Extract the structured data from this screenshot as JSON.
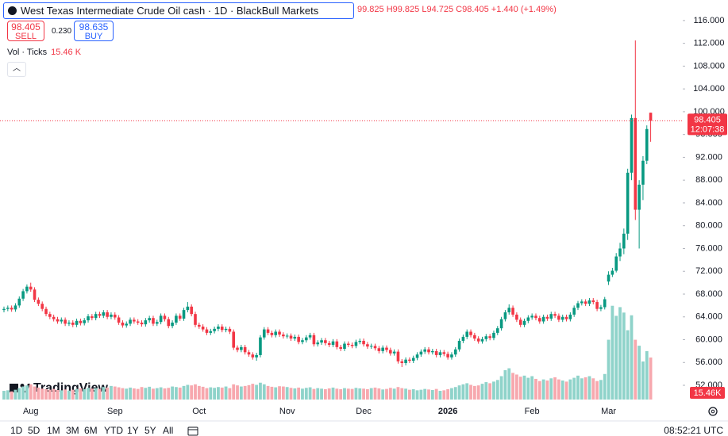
{
  "header": {
    "title": "West Texas Intermediate Crude Oil cash · 1D · BlackBull Markets",
    "readout": "99.825 H99.825 L94.725 C98.405 +1.440 (+1.49%)"
  },
  "trade_panel": {
    "sell_price": "98.405",
    "sell_label": "SELL",
    "spread": "0.230",
    "buy_price": "98.635",
    "buy_label": "BUY"
  },
  "chart_data": {
    "type": "candlestick",
    "categories": [
      null,
      null,
      null,
      null,
      null,
      null,
      null,
      "Aug",
      null,
      null,
      null,
      null,
      null,
      null,
      null,
      null,
      null,
      null,
      null,
      null,
      null,
      null,
      null,
      null,
      null,
      null,
      null,
      null,
      null,
      "Sep",
      null,
      null,
      null,
      null,
      null,
      null,
      null,
      null,
      null,
      null,
      null,
      null,
      null,
      null,
      null,
      null,
      null,
      null,
      null,
      null,
      null,
      "Oct",
      null,
      null,
      null,
      null,
      null,
      null,
      null,
      null,
      null,
      null,
      null,
      null,
      null,
      null,
      null,
      null,
      null,
      null,
      null,
      null,
      null,
      null,
      "Nov",
      null,
      null,
      null,
      null,
      null,
      null,
      null,
      null,
      null,
      null,
      null,
      null,
      null,
      null,
      null,
      null,
      null,
      null,
      null,
      "Dec",
      null,
      null,
      null,
      null,
      null,
      null,
      null,
      null,
      null,
      null,
      null,
      null,
      null,
      null,
      null,
      null,
      null,
      null,
      null,
      null,
      null,
      "2026",
      null,
      null,
      null,
      null,
      null,
      null,
      null,
      null,
      null,
      null,
      null,
      null,
      null,
      null,
      null,
      null,
      null,
      null,
      null,
      null,
      null,
      "Feb",
      null,
      null,
      null,
      null,
      null,
      null,
      null,
      null,
      null,
      null,
      null,
      null,
      null,
      null,
      null,
      null,
      null,
      null,
      null,
      "Mar",
      null,
      null,
      null,
      null,
      null,
      null,
      null,
      null,
      null,
      null,
      null
    ],
    "open": [
      65.2,
      65.4,
      65.6,
      65.3,
      66.0,
      67.2,
      68.5,
      69.3,
      68.8,
      67.0,
      66.3,
      65.4,
      64.5,
      64.0,
      63.6,
      63.2,
      63.5,
      62.8,
      63.0,
      62.6,
      63.3,
      62.9,
      63.4,
      64.1,
      63.8,
      64.5,
      64.2,
      64.8,
      64.0,
      64.4,
      63.9,
      63.0,
      62.5,
      62.8,
      63.5,
      63.2,
      63.0,
      62.7,
      63.4,
      63.8,
      62.8,
      63.1,
      64.2,
      63.6,
      62.4,
      63.0,
      64.2,
      63.7,
      65.2,
      65.8,
      64.5,
      62.6,
      62.3,
      61.8,
      61.2,
      61.5,
      61.9,
      62.3,
      61.7,
      61.9,
      61.4,
      58.6,
      58.2,
      58.7,
      57.8,
      57.4,
      56.9,
      57.3,
      60.4,
      61.8,
      61.2,
      60.8,
      61.4,
      60.9,
      60.6,
      60.7,
      60.2,
      60.5,
      59.6,
      59.9,
      60.4,
      60.8,
      59.2,
      59.5,
      59.9,
      59.4,
      59.1,
      59.7,
      58.7,
      58.4,
      59.3,
      59.1,
      58.9,
      59.6,
      59.8,
      59.2,
      58.8,
      58.9,
      58.5,
      58.0,
      58.6,
      58.2,
      57.6,
      57.9,
      56.2,
      55.9,
      56.5,
      56.3,
      56.8,
      57.4,
      57.9,
      58.3,
      57.8,
      58.0,
      57.3,
      57.8,
      57.5,
      56.9,
      57.4,
      58.3,
      59.8,
      60.5,
      61.4,
      60.8,
      60.2,
      59.7,
      60.1,
      60.6,
      60.3,
      61.2,
      62.0,
      63.6,
      64.8,
      65.6,
      64.4,
      63.5,
      62.6,
      63.3,
      63.9,
      64.2,
      63.8,
      63.2,
      64.0,
      63.7,
      64.5,
      64.2,
      63.5,
      64.0,
      63.6,
      64.4,
      65.6,
      66.4,
      66.7,
      66.3,
      66.9,
      66.6,
      65.4,
      65.7,
      70.2,
      71.4,
      72.1,
      74.6,
      76.0,
      78.6,
      89.3,
      98.9,
      82.8,
      87.2,
      91.4,
      99.825
    ],
    "high": [
      65.8,
      66.0,
      66.0,
      66.4,
      67.6,
      68.9,
      69.7,
      70.0,
      69.2,
      67.4,
      66.7,
      65.8,
      64.9,
      64.4,
      64.0,
      63.9,
      63.9,
      63.4,
      63.4,
      63.7,
      63.7,
      63.8,
      64.5,
      64.5,
      64.9,
      64.9,
      65.2,
      65.2,
      64.8,
      64.8,
      64.3,
      63.4,
      63.2,
      63.9,
      63.9,
      63.6,
      63.4,
      63.8,
      64.2,
      64.2,
      63.5,
      64.6,
      64.6,
      64.0,
      63.4,
      64.6,
      64.6,
      65.6,
      66.6,
      66.2,
      64.9,
      63.0,
      62.7,
      62.2,
      61.9,
      62.3,
      62.7,
      62.7,
      62.3,
      62.3,
      61.8,
      59.0,
      59.1,
      59.1,
      58.2,
      57.8,
      57.7,
      60.8,
      62.2,
      62.2,
      61.6,
      61.8,
      61.8,
      61.3,
      61.1,
      61.1,
      60.9,
      60.9,
      60.3,
      60.8,
      61.2,
      61.2,
      59.9,
      60.3,
      60.3,
      59.8,
      60.1,
      60.1,
      59.1,
      59.7,
      59.7,
      59.5,
      60.0,
      60.2,
      60.2,
      59.6,
      59.3,
      59.3,
      58.9,
      59.0,
      59.0,
      58.6,
      58.3,
      58.3,
      56.6,
      56.9,
      56.9,
      57.2,
      57.8,
      58.3,
      58.7,
      58.7,
      58.4,
      58.4,
      58.2,
      58.2,
      57.9,
      57.8,
      58.7,
      60.2,
      60.9,
      61.8,
      61.8,
      61.2,
      60.6,
      60.5,
      61.0,
      61.0,
      61.6,
      62.4,
      64.0,
      65.2,
      66.2,
      66.0,
      64.8,
      63.9,
      63.7,
      64.3,
      64.6,
      64.6,
      64.2,
      64.4,
      64.4,
      64.9,
      64.9,
      64.6,
      64.4,
      64.4,
      64.8,
      66.0,
      66.8,
      67.1,
      67.1,
      67.3,
      67.3,
      67.0,
      66.1,
      67.5,
      72.0,
      72.6,
      75.2,
      77.0,
      79.5,
      90.0,
      99.5,
      112.5,
      88.0,
      92.2,
      97.6,
      99.825
    ],
    "low": [
      64.8,
      65.0,
      64.9,
      64.9,
      65.6,
      66.8,
      68.1,
      68.4,
      66.6,
      65.9,
      65.0,
      64.1,
      63.6,
      63.2,
      62.8,
      62.8,
      62.4,
      62.4,
      62.2,
      62.2,
      62.5,
      62.5,
      63.0,
      63.4,
      63.4,
      63.8,
      63.8,
      63.6,
      63.6,
      63.5,
      62.6,
      62.1,
      62.1,
      62.4,
      62.8,
      62.6,
      62.3,
      62.3,
      63.0,
      62.4,
      62.4,
      62.7,
      63.2,
      62.0,
      62.0,
      62.6,
      63.3,
      63.3,
      64.8,
      64.1,
      62.2,
      61.9,
      61.4,
      60.8,
      60.8,
      61.1,
      61.5,
      61.3,
      61.3,
      61.0,
      58.2,
      57.8,
      57.8,
      57.4,
      57.0,
      56.5,
      56.3,
      56.9,
      60.0,
      60.8,
      60.4,
      60.4,
      60.5,
      60.2,
      60.2,
      59.8,
      59.8,
      59.2,
      59.2,
      59.5,
      60.0,
      58.8,
      58.8,
      59.1,
      59.0,
      58.7,
      58.7,
      58.3,
      58.0,
      58.0,
      58.7,
      58.5,
      58.5,
      59.2,
      58.8,
      58.4,
      58.4,
      58.1,
      57.6,
      57.6,
      57.8,
      57.2,
      57.2,
      55.8,
      55.2,
      55.5,
      55.9,
      55.9,
      56.4,
      57.0,
      57.5,
      57.4,
      57.4,
      56.9,
      56.9,
      57.1,
      56.5,
      56.5,
      57.0,
      57.9,
      59.4,
      60.1,
      60.4,
      59.8,
      59.3,
      59.3,
      59.7,
      59.9,
      59.9,
      60.8,
      61.6,
      63.2,
      64.4,
      64.0,
      63.1,
      62.2,
      62.2,
      62.9,
      63.5,
      63.4,
      62.8,
      62.8,
      63.3,
      63.3,
      63.8,
      63.1,
      63.1,
      63.2,
      63.2,
      64.0,
      65.2,
      66.0,
      65.9,
      65.9,
      66.2,
      65.0,
      65.0,
      65.3,
      69.6,
      71.0,
      71.8,
      73.8,
      75.0,
      77.5,
      88.0,
      81.0,
      76.0,
      84.5,
      90.8,
      94.725
    ],
    "close": [
      65.4,
      65.6,
      65.3,
      66.0,
      67.2,
      68.5,
      69.3,
      68.8,
      67.0,
      66.3,
      65.4,
      64.5,
      64.0,
      63.6,
      63.2,
      63.5,
      62.8,
      63.0,
      62.6,
      63.3,
      62.9,
      63.4,
      64.1,
      63.8,
      64.5,
      64.2,
      64.8,
      64.0,
      64.4,
      63.9,
      63.0,
      62.5,
      62.8,
      63.5,
      63.2,
      63.0,
      62.7,
      63.4,
      63.8,
      62.8,
      63.1,
      64.2,
      63.6,
      62.4,
      63.0,
      64.2,
      63.7,
      65.2,
      65.8,
      64.5,
      62.6,
      62.3,
      61.8,
      61.2,
      61.5,
      61.9,
      62.3,
      61.7,
      61.9,
      61.4,
      58.6,
      58.2,
      58.7,
      57.8,
      57.4,
      56.9,
      57.3,
      60.4,
      61.8,
      61.2,
      60.8,
      61.4,
      60.9,
      60.6,
      60.7,
      60.2,
      60.5,
      59.6,
      59.9,
      60.4,
      60.8,
      59.2,
      59.5,
      59.9,
      59.4,
      59.1,
      59.7,
      58.7,
      58.4,
      59.3,
      59.1,
      58.9,
      59.6,
      59.8,
      59.2,
      58.8,
      58.9,
      58.5,
      58.0,
      58.6,
      58.2,
      57.6,
      57.9,
      56.2,
      55.9,
      56.5,
      56.3,
      56.8,
      57.4,
      57.9,
      58.3,
      57.8,
      58.0,
      57.3,
      57.8,
      57.5,
      56.9,
      57.4,
      58.3,
      59.8,
      60.5,
      61.4,
      60.8,
      60.2,
      59.7,
      60.1,
      60.6,
      60.3,
      61.2,
      62.0,
      63.6,
      64.8,
      65.6,
      64.4,
      63.5,
      62.6,
      63.3,
      63.9,
      64.2,
      63.8,
      63.2,
      64.0,
      63.7,
      64.5,
      64.2,
      63.5,
      64.0,
      63.6,
      64.4,
      65.6,
      66.4,
      66.7,
      66.3,
      66.9,
      66.6,
      65.4,
      65.7,
      67.1,
      71.4,
      72.1,
      74.6,
      76.0,
      78.6,
      89.3,
      98.9,
      82.8,
      87.2,
      91.4,
      96.965,
      98.405
    ],
    "up_color": "#089981",
    "down_color": "#f23645",
    "ylim": [
      49.5,
      119.6
    ],
    "yticks": [
      {
        "value": 52,
        "label": "52.000"
      },
      {
        "value": 56,
        "label": "56.000"
      },
      {
        "value": 60,
        "label": "60.000"
      },
      {
        "value": 64,
        "label": "64.000"
      },
      {
        "value": 68,
        "label": "68.000"
      },
      {
        "value": 72,
        "label": "72.000"
      },
      {
        "value": 76,
        "label": "76.000"
      },
      {
        "value": 80,
        "label": "80.000"
      },
      {
        "value": 84,
        "label": "84.000"
      },
      {
        "value": 88,
        "label": "88.000"
      },
      {
        "value": 92,
        "label": "92.000"
      },
      {
        "value": 96,
        "label": "96.000"
      },
      {
        "value": 100,
        "label": "100.000"
      },
      {
        "value": 104,
        "label": "104.000"
      },
      {
        "value": 108,
        "label": "108.000"
      },
      {
        "value": 112,
        "label": "112.000"
      },
      {
        "value": 116,
        "label": "116.000"
      }
    ],
    "countdown": "12:07:38",
    "volume": {
      "name": "Vol · Ticks",
      "legend_value": "15.46 K",
      "last_label": "15.46K",
      "up_color": "#8fd3ca",
      "down_color": "#f7a8ae",
      "ylim": [
        0,
        147000
      ],
      "values": [
        3200,
        3400,
        3000,
        3600,
        4200,
        4800,
        5200,
        5600,
        4800,
        4400,
        4000,
        3800,
        3600,
        3900,
        3500,
        3400,
        3700,
        3300,
        3600,
        3900,
        4100,
        3800,
        4300,
        4000,
        4200,
        3900,
        4600,
        4400,
        5000,
        4800,
        4500,
        4200,
        4000,
        4400,
        4100,
        3900,
        4600,
        4300,
        4700,
        4000,
        4200,
        4500,
        4100,
        4300,
        4800,
        4600,
        4400,
        5000,
        5400,
        5200,
        5600,
        5000,
        4700,
        4200,
        4500,
        4300,
        4600,
        4400,
        4800,
        4200,
        5600,
        5200,
        4800,
        5000,
        5300,
        5800,
        5400,
        6200,
        5600,
        5000,
        4700,
        4500,
        4900,
        4800,
        4600,
        4300,
        4100,
        4400,
        4000,
        4300,
        4500,
        3900,
        4200,
        4000,
        3800,
        4100,
        4400,
        4000,
        3800,
        4200,
        4000,
        3900,
        4300,
        4100,
        4000,
        3800,
        4200,
        4400,
        4100,
        3700,
        3900,
        4300,
        4000,
        4600,
        4200,
        4000,
        3600,
        3800,
        3400,
        3600,
        3900,
        3700,
        3500,
        3900,
        3200,
        3400,
        3800,
        4200,
        4600,
        5200,
        5600,
        6000,
        5400,
        5000,
        5200,
        5800,
        6400,
        6000,
        6600,
        7200,
        8600,
        10800,
        11500,
        9800,
        9200,
        8400,
        8800,
        8000,
        8600,
        7600,
        6800,
        7400,
        7000,
        7800,
        8200,
        7400,
        7000,
        6600,
        7400,
        8000,
        8800,
        7800,
        8200,
        8600,
        7800,
        6800,
        7200,
        9400,
        22000,
        34500,
        30800,
        34000,
        32000,
        25500,
        31000,
        22000,
        19800,
        14000,
        17800,
        15460
      ]
    }
  },
  "branding": "TradingView",
  "toolbar": {
    "ranges": [
      "1D",
      "5D",
      "1M",
      "3M",
      "6M",
      "YTD",
      "1Y",
      "5Y",
      "All"
    ],
    "clock": "08:52:21 UTC"
  }
}
